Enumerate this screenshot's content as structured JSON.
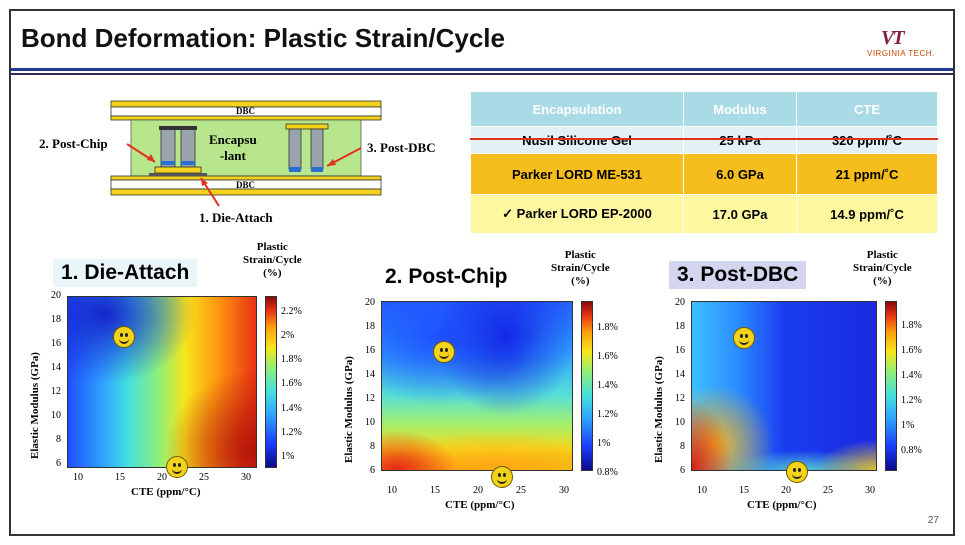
{
  "slide": {
    "title": "Bond Deformation: Plastic Strain/Cycle",
    "logo_text": "VT",
    "logo_name": "VIRGINIA TECH.",
    "page_number": "27"
  },
  "cross_section": {
    "dbc_top": "DBC",
    "dbc_bottom": "DBC",
    "encapsulant": "Encapsu\n-lant",
    "post_chip": "2. Post-Chip",
    "post_dbc": "3. Post-DBC",
    "die_attach": "1. Die-Attach"
  },
  "table": {
    "headers": [
      "Encapsulation",
      "Modulus",
      "CTE"
    ],
    "rows": [
      {
        "name": "Nusil Silicone Gel",
        "modulus": "25 kPa",
        "cte": "320 ppm/˚C",
        "style": "strike"
      },
      {
        "name": "Parker LORD ME-531",
        "modulus": "6.0 GPa",
        "cte": "21 ppm/˚C",
        "style": "orange"
      },
      {
        "name": "✓ Parker LORD EP-2000",
        "modulus": "17.0 GPa",
        "cte": "14.9 ppm/˚C",
        "style": "yellow"
      }
    ]
  },
  "panels": [
    {
      "title": "1. Die-Attach",
      "legend_title_1": "Plastic",
      "legend_title_2": "Strain/Cycle",
      "legend_title_3": "(%)",
      "ylabel": "Elastic Modulus (GPa)",
      "xlabel": "CTE (ppm/°C)",
      "xticks": [
        "10",
        "15",
        "20",
        "25",
        "30"
      ],
      "yticks": [
        "20",
        "18",
        "16",
        "14",
        "12",
        "10",
        "8",
        "6"
      ],
      "cbar_ticks": [
        "2.2%",
        "2%",
        "1.8%",
        "1.6%",
        "1.4%",
        "1.2%",
        "1%"
      ]
    },
    {
      "title": "2. Post-Chip",
      "legend_title_1": "Plastic",
      "legend_title_2": "Strain/Cycle",
      "legend_title_3": "(%)",
      "ylabel": "Elastic Modulus (GPa)",
      "xlabel": "CTE (ppm/°C)",
      "xticks": [
        "10",
        "15",
        "20",
        "25",
        "30"
      ],
      "yticks": [
        "20",
        "18",
        "16",
        "14",
        "12",
        "10",
        "8",
        "6"
      ],
      "cbar_ticks": [
        "1.8%",
        "1.6%",
        "1.4%",
        "1.2%",
        "1%",
        "0.8%"
      ]
    },
    {
      "title": "3. Post-DBC",
      "legend_title_1": "Plastic",
      "legend_title_2": "Strain/Cycle",
      "legend_title_3": "(%)",
      "ylabel": "Elastic Modulus (GPa)",
      "xlabel": "CTE (ppm/°C)",
      "xticks": [
        "10",
        "15",
        "20",
        "25",
        "30"
      ],
      "yticks": [
        "20",
        "18",
        "16",
        "14",
        "12",
        "10",
        "8",
        "6"
      ],
      "cbar_ticks": [
        "1.8%",
        "1.6%",
        "1.4%",
        "1.2%",
        "1%",
        "0.8%"
      ]
    }
  ],
  "colors": {
    "title_rule": "#1f3e8a",
    "strike_red": "#e0321e",
    "header_teal": "#a9dbe6",
    "row_orange": "#f6be1c",
    "row_yellow": "#fdf7a0"
  }
}
